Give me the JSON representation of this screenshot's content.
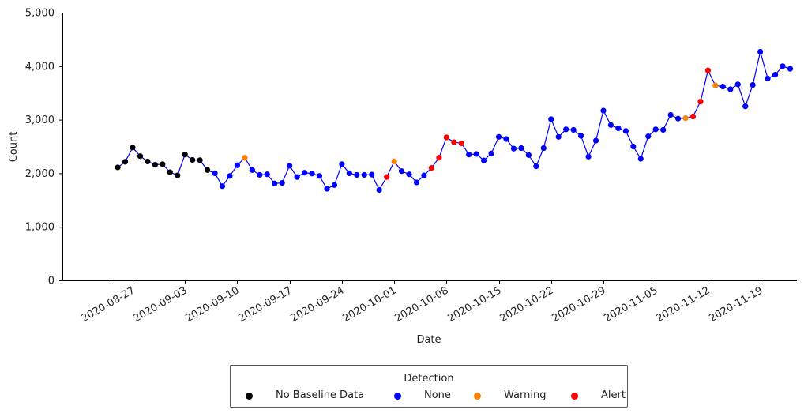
{
  "chart_data": {
    "type": "scatter",
    "xlabel": "Date",
    "ylabel": "Count",
    "ylim": [
      0,
      5000
    ],
    "y_ticks": [
      0,
      1000,
      2000,
      3000,
      4000,
      5000
    ],
    "y_tick_labels": [
      "0",
      "1,000",
      "2,000",
      "3,000",
      "4,000",
      "5,000"
    ],
    "x_ticks": [
      "2020-08-24",
      "2020-08-27",
      "2020-09-03",
      "2020-09-10",
      "2020-09-17",
      "2020-09-24",
      "2020-10-01",
      "2020-10-08",
      "2020-10-15",
      "2020-10-22",
      "2020-10-29",
      "2020-11-05",
      "2020-11-12",
      "2020-11-19"
    ],
    "x_tick_labels": [
      "",
      "2020-08-27",
      "2020-09-03",
      "2020-09-10",
      "2020-09-17",
      "2020-09-24",
      "2020-10-01",
      "2020-10-08",
      "2020-10-15",
      "2020-10-22",
      "2020-10-29",
      "2020-11-05",
      "2020-11-12",
      "2020-11-19"
    ],
    "line_color": "#0000ff",
    "legend": {
      "title": "Detection",
      "position": "bottom-center",
      "entries": [
        {
          "label": "No Baseline Data",
          "color": "#000000"
        },
        {
          "label": "None",
          "color": "#0000ff"
        },
        {
          "label": "Warning",
          "color": "#ff8000"
        },
        {
          "label": "Alert",
          "color": "#ff0000"
        }
      ]
    },
    "points": [
      {
        "date": "2020-08-25",
        "value": 2110,
        "detection": "No Baseline Data"
      },
      {
        "date": "2020-08-26",
        "value": 2215,
        "detection": "No Baseline Data"
      },
      {
        "date": "2020-08-27",
        "value": 2480,
        "detection": "No Baseline Data"
      },
      {
        "date": "2020-08-28",
        "value": 2320,
        "detection": "No Baseline Data"
      },
      {
        "date": "2020-08-29",
        "value": 2220,
        "detection": "No Baseline Data"
      },
      {
        "date": "2020-08-30",
        "value": 2160,
        "detection": "No Baseline Data"
      },
      {
        "date": "2020-08-31",
        "value": 2170,
        "detection": "No Baseline Data"
      },
      {
        "date": "2020-09-01",
        "value": 2020,
        "detection": "No Baseline Data"
      },
      {
        "date": "2020-09-02",
        "value": 1960,
        "detection": "No Baseline Data"
      },
      {
        "date": "2020-09-03",
        "value": 2350,
        "detection": "No Baseline Data"
      },
      {
        "date": "2020-09-04",
        "value": 2250,
        "detection": "No Baseline Data"
      },
      {
        "date": "2020-09-05",
        "value": 2245,
        "detection": "No Baseline Data"
      },
      {
        "date": "2020-09-06",
        "value": 2060,
        "detection": "No Baseline Data"
      },
      {
        "date": "2020-09-07",
        "value": 2000,
        "detection": "None"
      },
      {
        "date": "2020-09-08",
        "value": 1760,
        "detection": "None"
      },
      {
        "date": "2020-09-09",
        "value": 1950,
        "detection": "None"
      },
      {
        "date": "2020-09-10",
        "value": 2150,
        "detection": "None"
      },
      {
        "date": "2020-09-11",
        "value": 2290,
        "detection": "Warning"
      },
      {
        "date": "2020-09-12",
        "value": 2060,
        "detection": "None"
      },
      {
        "date": "2020-09-13",
        "value": 1970,
        "detection": "None"
      },
      {
        "date": "2020-09-14",
        "value": 1980,
        "detection": "None"
      },
      {
        "date": "2020-09-15",
        "value": 1810,
        "detection": "None"
      },
      {
        "date": "2020-09-16",
        "value": 1820,
        "detection": "None"
      },
      {
        "date": "2020-09-17",
        "value": 2140,
        "detection": "None"
      },
      {
        "date": "2020-09-18",
        "value": 1930,
        "detection": "None"
      },
      {
        "date": "2020-09-19",
        "value": 2010,
        "detection": "None"
      },
      {
        "date": "2020-09-20",
        "value": 1995,
        "detection": "None"
      },
      {
        "date": "2020-09-21",
        "value": 1950,
        "detection": "None"
      },
      {
        "date": "2020-09-22",
        "value": 1710,
        "detection": "None"
      },
      {
        "date": "2020-09-23",
        "value": 1780,
        "detection": "None"
      },
      {
        "date": "2020-09-24",
        "value": 2170,
        "detection": "None"
      },
      {
        "date": "2020-09-25",
        "value": 2000,
        "detection": "None"
      },
      {
        "date": "2020-09-26",
        "value": 1970,
        "detection": "None"
      },
      {
        "date": "2020-09-27",
        "value": 1970,
        "detection": "None"
      },
      {
        "date": "2020-09-28",
        "value": 1975,
        "detection": "None"
      },
      {
        "date": "2020-09-29",
        "value": 1690,
        "detection": "None"
      },
      {
        "date": "2020-09-30",
        "value": 1930,
        "detection": "Alert"
      },
      {
        "date": "2020-10-01",
        "value": 2220,
        "detection": "Warning"
      },
      {
        "date": "2020-10-02",
        "value": 2040,
        "detection": "None"
      },
      {
        "date": "2020-10-03",
        "value": 1980,
        "detection": "None"
      },
      {
        "date": "2020-10-04",
        "value": 1830,
        "detection": "None"
      },
      {
        "date": "2020-10-05",
        "value": 1960,
        "detection": "None"
      },
      {
        "date": "2020-10-06",
        "value": 2100,
        "detection": "Alert"
      },
      {
        "date": "2020-10-07",
        "value": 2290,
        "detection": "Alert"
      },
      {
        "date": "2020-10-08",
        "value": 2670,
        "detection": "Alert"
      },
      {
        "date": "2020-10-09",
        "value": 2580,
        "detection": "Alert"
      },
      {
        "date": "2020-10-10",
        "value": 2560,
        "detection": "Alert"
      },
      {
        "date": "2020-10-11",
        "value": 2350,
        "detection": "None"
      },
      {
        "date": "2020-10-12",
        "value": 2360,
        "detection": "None"
      },
      {
        "date": "2020-10-13",
        "value": 2240,
        "detection": "None"
      },
      {
        "date": "2020-10-14",
        "value": 2370,
        "detection": "None"
      },
      {
        "date": "2020-10-15",
        "value": 2680,
        "detection": "None"
      },
      {
        "date": "2020-10-16",
        "value": 2640,
        "detection": "None"
      },
      {
        "date": "2020-10-17",
        "value": 2460,
        "detection": "None"
      },
      {
        "date": "2020-10-18",
        "value": 2470,
        "detection": "None"
      },
      {
        "date": "2020-10-19",
        "value": 2340,
        "detection": "None"
      },
      {
        "date": "2020-10-20",
        "value": 2130,
        "detection": "None"
      },
      {
        "date": "2020-10-21",
        "value": 2470,
        "detection": "None"
      },
      {
        "date": "2020-10-22",
        "value": 3010,
        "detection": "None"
      },
      {
        "date": "2020-10-23",
        "value": 2680,
        "detection": "None"
      },
      {
        "date": "2020-10-24",
        "value": 2820,
        "detection": "None"
      },
      {
        "date": "2020-10-25",
        "value": 2810,
        "detection": "None"
      },
      {
        "date": "2020-10-26",
        "value": 2700,
        "detection": "None"
      },
      {
        "date": "2020-10-27",
        "value": 2310,
        "detection": "None"
      },
      {
        "date": "2020-10-28",
        "value": 2610,
        "detection": "None"
      },
      {
        "date": "2020-10-29",
        "value": 3170,
        "detection": "None"
      },
      {
        "date": "2020-10-30",
        "value": 2900,
        "detection": "None"
      },
      {
        "date": "2020-10-31",
        "value": 2840,
        "detection": "None"
      },
      {
        "date": "2020-11-01",
        "value": 2790,
        "detection": "None"
      },
      {
        "date": "2020-11-02",
        "value": 2500,
        "detection": "None"
      },
      {
        "date": "2020-11-03",
        "value": 2270,
        "detection": "None"
      },
      {
        "date": "2020-11-04",
        "value": 2690,
        "detection": "None"
      },
      {
        "date": "2020-11-05",
        "value": 2820,
        "detection": "None"
      },
      {
        "date": "2020-11-06",
        "value": 2810,
        "detection": "None"
      },
      {
        "date": "2020-11-07",
        "value": 3090,
        "detection": "None"
      },
      {
        "date": "2020-11-08",
        "value": 3020,
        "detection": "None"
      },
      {
        "date": "2020-11-09",
        "value": 3030,
        "detection": "Warning"
      },
      {
        "date": "2020-11-10",
        "value": 3060,
        "detection": "Alert"
      },
      {
        "date": "2020-11-11",
        "value": 3340,
        "detection": "Alert"
      },
      {
        "date": "2020-11-12",
        "value": 3920,
        "detection": "Alert"
      },
      {
        "date": "2020-11-13",
        "value": 3640,
        "detection": "Warning"
      },
      {
        "date": "2020-11-14",
        "value": 3620,
        "detection": "None"
      },
      {
        "date": "2020-11-15",
        "value": 3570,
        "detection": "None"
      },
      {
        "date": "2020-11-16",
        "value": 3660,
        "detection": "None"
      },
      {
        "date": "2020-11-17",
        "value": 3250,
        "detection": "None"
      },
      {
        "date": "2020-11-18",
        "value": 3650,
        "detection": "None"
      },
      {
        "date": "2020-11-19",
        "value": 4270,
        "detection": "None"
      },
      {
        "date": "2020-11-20",
        "value": 3770,
        "detection": "None"
      },
      {
        "date": "2020-11-21",
        "value": 3840,
        "detection": "None"
      },
      {
        "date": "2020-11-22",
        "value": 4000,
        "detection": "None"
      },
      {
        "date": "2020-11-23",
        "value": 3950,
        "detection": "None"
      }
    ]
  }
}
